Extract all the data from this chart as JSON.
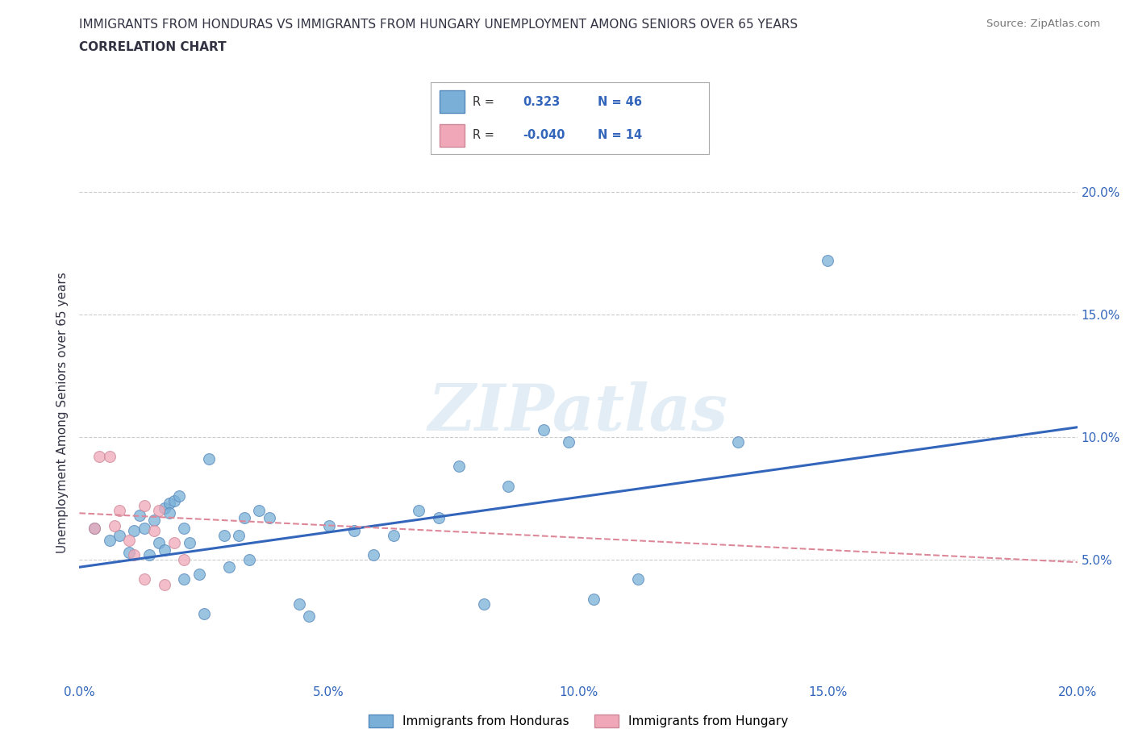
{
  "title_line1": "IMMIGRANTS FROM HONDURAS VS IMMIGRANTS FROM HUNGARY UNEMPLOYMENT AMONG SENIORS OVER 65 YEARS",
  "title_line2": "CORRELATION CHART",
  "source_text": "Source: ZipAtlas.com",
  "ylabel": "Unemployment Among Seniors over 65 years",
  "xlim": [
    0.0,
    0.2
  ],
  "ylim": [
    0.0,
    0.22
  ],
  "xticks": [
    0.0,
    0.05,
    0.1,
    0.15,
    0.2
  ],
  "yticks": [
    0.0,
    0.05,
    0.1,
    0.15,
    0.2
  ],
  "grid_color": "#cccccc",
  "watermark_text": "ZIPatlas",
  "legend_R_honduras": "0.323",
  "legend_N_honduras": "46",
  "legend_R_hungary": "-0.040",
  "legend_N_hungary": "14",
  "honduras_color": "#7ab0d8",
  "honduras_edge_color": "#5588bb",
  "hungary_color": "#f0a8b8",
  "hungary_edge_color": "#cc8899",
  "honduras_line_color": "#3366bb",
  "hungary_line_color": "#dd8899",
  "title_color": "#333344",
  "axis_label_color": "#3366bb",
  "tick_label_color": "#3366bb",
  "honduras_points": [
    [
      0.003,
      0.063
    ],
    [
      0.006,
      0.058
    ],
    [
      0.008,
      0.06
    ],
    [
      0.01,
      0.053
    ],
    [
      0.011,
      0.062
    ],
    [
      0.012,
      0.068
    ],
    [
      0.013,
      0.063
    ],
    [
      0.014,
      0.052
    ],
    [
      0.015,
      0.066
    ],
    [
      0.016,
      0.057
    ],
    [
      0.017,
      0.054
    ],
    [
      0.017,
      0.071
    ],
    [
      0.018,
      0.073
    ],
    [
      0.018,
      0.069
    ],
    [
      0.019,
      0.074
    ],
    [
      0.02,
      0.076
    ],
    [
      0.021,
      0.042
    ],
    [
      0.021,
      0.063
    ],
    [
      0.022,
      0.057
    ],
    [
      0.024,
      0.044
    ],
    [
      0.025,
      0.028
    ],
    [
      0.026,
      0.091
    ],
    [
      0.029,
      0.06
    ],
    [
      0.03,
      0.047
    ],
    [
      0.032,
      0.06
    ],
    [
      0.033,
      0.067
    ],
    [
      0.034,
      0.05
    ],
    [
      0.036,
      0.07
    ],
    [
      0.038,
      0.067
    ],
    [
      0.044,
      0.032
    ],
    [
      0.046,
      0.027
    ],
    [
      0.05,
      0.064
    ],
    [
      0.055,
      0.062
    ],
    [
      0.059,
      0.052
    ],
    [
      0.063,
      0.06
    ],
    [
      0.068,
      0.07
    ],
    [
      0.072,
      0.067
    ],
    [
      0.076,
      0.088
    ],
    [
      0.081,
      0.032
    ],
    [
      0.086,
      0.08
    ],
    [
      0.093,
      0.103
    ],
    [
      0.098,
      0.098
    ],
    [
      0.103,
      0.034
    ],
    [
      0.112,
      0.042
    ],
    [
      0.132,
      0.098
    ],
    [
      0.15,
      0.172
    ]
  ],
  "hungary_points": [
    [
      0.003,
      0.063
    ],
    [
      0.004,
      0.092
    ],
    [
      0.006,
      0.092
    ],
    [
      0.007,
      0.064
    ],
    [
      0.008,
      0.07
    ],
    [
      0.01,
      0.058
    ],
    [
      0.011,
      0.052
    ],
    [
      0.013,
      0.072
    ],
    [
      0.013,
      0.042
    ],
    [
      0.015,
      0.062
    ],
    [
      0.016,
      0.07
    ],
    [
      0.017,
      0.04
    ],
    [
      0.019,
      0.057
    ],
    [
      0.021,
      0.05
    ]
  ],
  "honduras_trend_x": [
    0.0,
    0.2
  ],
  "honduras_trend_y": [
    0.047,
    0.104
  ],
  "hungary_trend_x": [
    0.0,
    0.2
  ],
  "hungary_trend_y": [
    0.069,
    0.049
  ]
}
